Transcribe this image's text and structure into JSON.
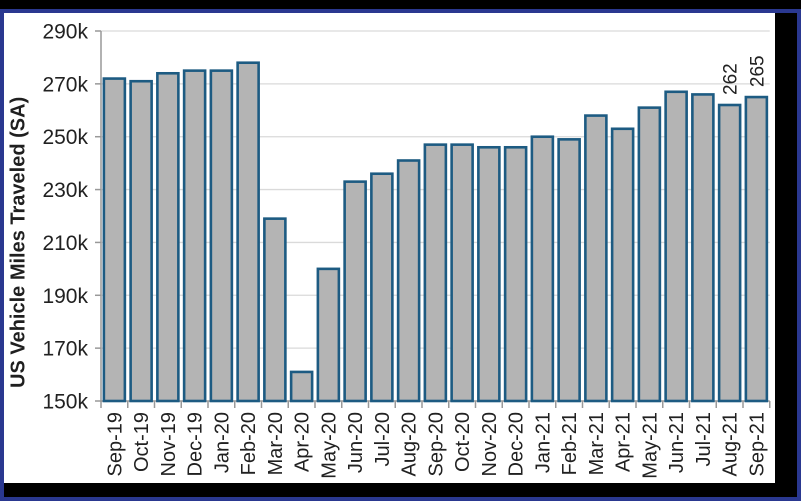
{
  "colors": {
    "outer_background": "#000000",
    "frame_border": "#2a3890",
    "panel_background": "#ffffff",
    "bar_fill": "#b4b4b4",
    "bar_stroke": "#1d5b82",
    "grid_color": "#dadada",
    "axis_color": "#999999",
    "text_color": "#212121"
  },
  "chart_data": {
    "type": "bar",
    "title": "",
    "xlabel": "",
    "ylabel": "US Vehicle Miles Traveled (SA)",
    "ylim": [
      150,
      290
    ],
    "ytick_values": [
      150,
      170,
      190,
      210,
      230,
      250,
      270,
      290
    ],
    "ytick_labels": [
      "150k",
      "170k",
      "190k",
      "210k",
      "230k",
      "250k",
      "270k",
      "290k"
    ],
    "grid": true,
    "legend_position": "none",
    "categories": [
      "Sep-19",
      "Oct-19",
      "Nov-19",
      "Dec-19",
      "Jan-20",
      "Feb-20",
      "Mar-20",
      "Apr-20",
      "May-20",
      "Jun-20",
      "Jul-20",
      "Aug-20",
      "Sep-20",
      "Oct-20",
      "Nov-20",
      "Dec-20",
      "Jan-21",
      "Feb-21",
      "Mar-21",
      "Apr-21",
      "May-21",
      "Jun-21",
      "Jul-21",
      "Aug-21",
      "Sep-21"
    ],
    "values": [
      272,
      271,
      274,
      275,
      275,
      278,
      219,
      161,
      200,
      233,
      236,
      241,
      247,
      247,
      246,
      246,
      250,
      249,
      258,
      253,
      261,
      267,
      266,
      262,
      265
    ],
    "annotations": [
      {
        "index": 23,
        "label": "262"
      },
      {
        "index": 24,
        "label": "265"
      }
    ]
  }
}
